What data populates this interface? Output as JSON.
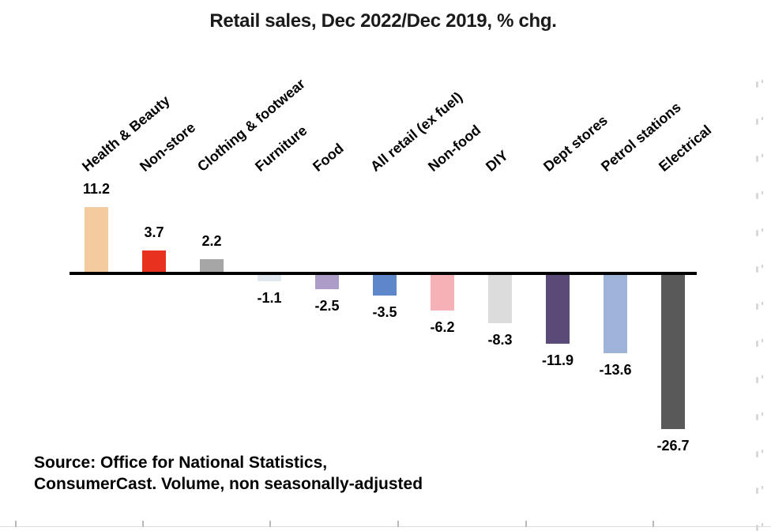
{
  "chart_data": {
    "type": "bar",
    "title": "Retail sales, Dec 2022/Dec 2019, % chg.",
    "categories": [
      "Health & Beauty",
      "Non-store",
      "Clothing & footwear",
      "Furniture",
      "Food",
      "All retail (ex fuel)",
      "Non-food",
      "DIY",
      "Dept stores",
      "Petrol stations",
      "Electrical"
    ],
    "values": [
      11.2,
      3.7,
      2.2,
      -1.1,
      -2.5,
      -3.5,
      -6.2,
      -8.3,
      -11.9,
      -13.6,
      -26.7
    ],
    "value_labels": [
      "11.2",
      "3.7",
      "2.2",
      "-1.1",
      "-2.5",
      "-3.5",
      "-6.2",
      "-8.3",
      "-11.9",
      "-13.6",
      "-26.7"
    ],
    "bar_colors": [
      "#f3cb9e",
      "#e8311f",
      "#a6a6a6",
      "#e2e8f0",
      "#ab9cc8",
      "#5d87c9",
      "#f5b1b5",
      "#dcdcdc",
      "#594a77",
      "#9eb3d8",
      "#595959"
    ],
    "xlabel": "",
    "ylabel": "",
    "ylim": [
      -28,
      12
    ],
    "baseline": 0,
    "grid": false,
    "legend": "none",
    "category_label_rotation_deg": 40
  },
  "source": {
    "line1": "Source: Office for National Statistics,",
    "line2": "ConsumerCast. Volume, non seasonally-adjusted"
  }
}
